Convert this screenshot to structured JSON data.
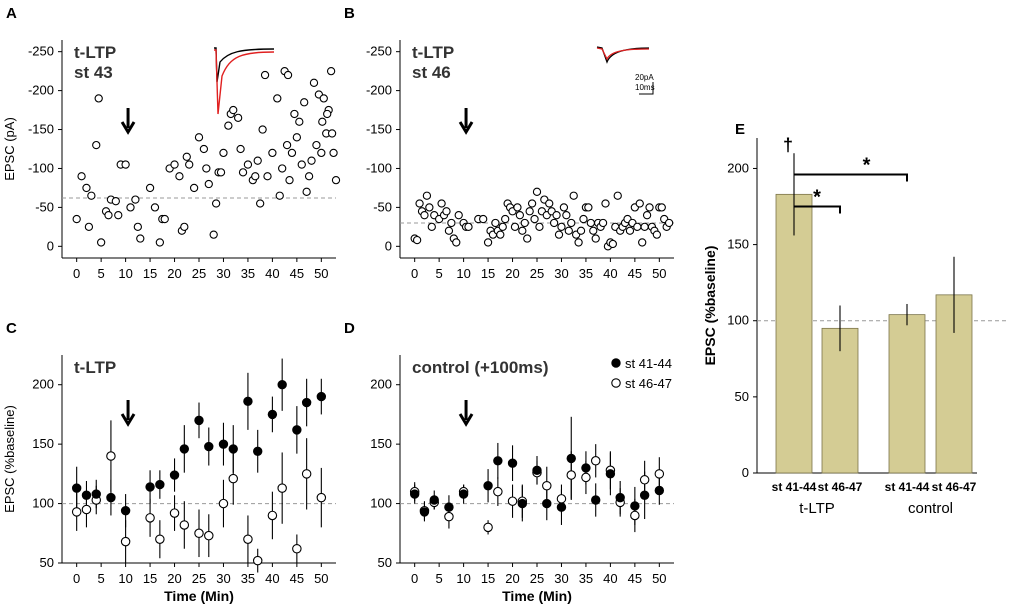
{
  "chart_data": [
    {
      "id": "A",
      "type": "scatter",
      "panel_label": "A",
      "title_lines": [
        "t-LTP",
        "st 43"
      ],
      "ylabel": "EPSC (pA)",
      "xlabel": "",
      "xlim": [
        -3,
        53
      ],
      "ylim": [
        15,
        -265
      ],
      "xticks": [
        0,
        5,
        10,
        15,
        20,
        25,
        30,
        35,
        40,
        45,
        50
      ],
      "yticks": [
        0,
        -50,
        -100,
        -150,
        -200,
        -250
      ],
      "baseline": -62,
      "arrow_x": 10.5,
      "points": [
        [
          0,
          -35
        ],
        [
          1,
          -90
        ],
        [
          2,
          -75
        ],
        [
          2.5,
          -25
        ],
        [
          3,
          -65
        ],
        [
          4,
          -130
        ],
        [
          4.5,
          -190
        ],
        [
          5,
          -5
        ],
        [
          6,
          -45
        ],
        [
          6.5,
          -40
        ],
        [
          7,
          -60
        ],
        [
          8,
          -58
        ],
        [
          8.5,
          -40
        ],
        [
          9,
          -105
        ],
        [
          10,
          -105
        ],
        [
          11,
          -50
        ],
        [
          12,
          -60
        ],
        [
          12.5,
          -25
        ],
        [
          13,
          -10
        ],
        [
          15,
          -75
        ],
        [
          16,
          -50
        ],
        [
          17,
          -5
        ],
        [
          17.5,
          -35
        ],
        [
          18,
          -35
        ],
        [
          19,
          -100
        ],
        [
          20,
          -105
        ],
        [
          21,
          -90
        ],
        [
          21.5,
          -20
        ],
        [
          22,
          -25
        ],
        [
          22.5,
          -115
        ],
        [
          23,
          -105
        ],
        [
          24,
          -75
        ],
        [
          25,
          -140
        ],
        [
          26,
          -125
        ],
        [
          27,
          -80
        ],
        [
          28,
          -15
        ],
        [
          29,
          -95
        ],
        [
          30,
          -120
        ],
        [
          31,
          -155
        ],
        [
          31.5,
          -170
        ],
        [
          32,
          -175
        ],
        [
          33,
          -165
        ],
        [
          33.5,
          -125
        ],
        [
          34,
          -95
        ],
        [
          35,
          -105
        ],
        [
          36,
          -85
        ],
        [
          36.5,
          -90
        ],
        [
          37,
          -110
        ],
        [
          38,
          -150
        ],
        [
          38.5,
          -220
        ],
        [
          39,
          -90
        ],
        [
          40,
          -120
        ],
        [
          41,
          -190
        ],
        [
          41.5,
          -65
        ],
        [
          42,
          -100
        ],
        [
          43,
          -130
        ],
        [
          43.5,
          -85
        ],
        [
          44,
          -120
        ],
        [
          44.5,
          -170
        ],
        [
          45,
          -140
        ],
        [
          45.5,
          -160
        ],
        [
          46,
          -105
        ],
        [
          47,
          -70
        ],
        [
          47.5,
          -90
        ],
        [
          48,
          -110
        ],
        [
          49,
          -130
        ],
        [
          50,
          -120
        ],
        [
          51,
          -145
        ],
        [
          51.5,
          -175
        ],
        [
          52,
          -225
        ],
        [
          52.5,
          -120
        ],
        [
          53,
          -85
        ],
        [
          42.5,
          -225
        ],
        [
          43.2,
          -220
        ],
        [
          26.5,
          -100
        ],
        [
          37.5,
          -55
        ],
        [
          29.5,
          -95
        ],
        [
          46.5,
          -185
        ],
        [
          48.5,
          -210
        ],
        [
          49.5,
          -195
        ],
        [
          50.5,
          -190
        ],
        [
          51.2,
          -170
        ],
        [
          50.2,
          -160
        ],
        [
          52.2,
          -145
        ],
        [
          28.5,
          -55
        ]
      ],
      "inset": "trace-red-black-A"
    },
    {
      "id": "B",
      "type": "scatter",
      "panel_label": "B",
      "title_lines": [
        "t-LTP",
        "st 46"
      ],
      "ylabel": "",
      "xlabel": "",
      "xlim": [
        -3,
        53
      ],
      "ylim": [
        15,
        -265
      ],
      "xticks": [
        0,
        5,
        10,
        15,
        20,
        25,
        30,
        35,
        40,
        45,
        50
      ],
      "yticks": [
        0,
        -50,
        -100,
        -150,
        -200,
        -250
      ],
      "baseline": -30,
      "arrow_x": 10.5,
      "scalebar": [
        "20pA",
        "10ms"
      ],
      "points": [
        [
          0,
          -10
        ],
        [
          0.5,
          -8
        ],
        [
          1,
          -55
        ],
        [
          1.5,
          -45
        ],
        [
          2,
          -40
        ],
        [
          2.5,
          -65
        ],
        [
          3,
          -50
        ],
        [
          3.5,
          -25
        ],
        [
          4,
          -40
        ],
        [
          5,
          -35
        ],
        [
          5.5,
          -55
        ],
        [
          6,
          -40
        ],
        [
          6.5,
          -45
        ],
        [
          7,
          -20
        ],
        [
          7.5,
          -30
        ],
        [
          8,
          -10
        ],
        [
          8.5,
          -5
        ],
        [
          9,
          -40
        ],
        [
          10,
          -30
        ],
        [
          10.5,
          -25
        ],
        [
          11,
          -25
        ],
        [
          13,
          -35
        ],
        [
          14,
          -35
        ],
        [
          15,
          -5
        ],
        [
          15.5,
          -20
        ],
        [
          16,
          -15
        ],
        [
          16.5,
          -30
        ],
        [
          17,
          -20
        ],
        [
          17.5,
          -15
        ],
        [
          18,
          -25
        ],
        [
          18.5,
          -35
        ],
        [
          19,
          -55
        ],
        [
          19.5,
          -50
        ],
        [
          20,
          -45
        ],
        [
          20.5,
          -25
        ],
        [
          21,
          -50
        ],
        [
          21.5,
          -40
        ],
        [
          22,
          -20
        ],
        [
          22.5,
          -30
        ],
        [
          23,
          -10
        ],
        [
          23.5,
          -45
        ],
        [
          24,
          -55
        ],
        [
          24.5,
          -35
        ],
        [
          25,
          -70
        ],
        [
          25.5,
          -25
        ],
        [
          26,
          -45
        ],
        [
          26.5,
          -60
        ],
        [
          27,
          -40
        ],
        [
          27.5,
          -55
        ],
        [
          28,
          -45
        ],
        [
          28.5,
          -30
        ],
        [
          29,
          -40
        ],
        [
          29.5,
          -15
        ],
        [
          30,
          -25
        ],
        [
          30.5,
          -50
        ],
        [
          31,
          -40
        ],
        [
          31.5,
          -20
        ],
        [
          32,
          -30
        ],
        [
          32.5,
          -65
        ],
        [
          33,
          -15
        ],
        [
          33.5,
          -5
        ],
        [
          34,
          -20
        ],
        [
          34.5,
          -35
        ],
        [
          35,
          -50
        ],
        [
          35.5,
          -50
        ],
        [
          36,
          -30
        ],
        [
          36.5,
          -20
        ],
        [
          37,
          -10
        ],
        [
          37.5,
          -30
        ],
        [
          38,
          -25
        ],
        [
          38.5,
          -30
        ],
        [
          39,
          -55
        ],
        [
          39.5,
          0
        ],
        [
          40,
          -5
        ],
        [
          40.5,
          -3
        ],
        [
          41,
          -25
        ],
        [
          41.5,
          -65
        ],
        [
          42,
          -20
        ],
        [
          42.5,
          -25
        ],
        [
          43,
          -30
        ],
        [
          43.5,
          -35
        ],
        [
          44,
          -20
        ],
        [
          44.5,
          -30
        ],
        [
          45,
          -50
        ],
        [
          45.5,
          -25
        ],
        [
          46,
          -55
        ],
        [
          46.5,
          -5
        ],
        [
          47,
          -25
        ],
        [
          47.5,
          -40
        ],
        [
          48,
          -50
        ],
        [
          48.5,
          -25
        ],
        [
          49,
          -20
        ],
        [
          49.5,
          -15
        ],
        [
          50,
          -50
        ],
        [
          50.5,
          -50
        ],
        [
          51,
          -35
        ],
        [
          51.5,
          -25
        ],
        [
          52,
          -30
        ]
      ]
    },
    {
      "id": "C",
      "type": "scatter_errorbar",
      "panel_label": "C",
      "title_lines": [
        "t-LTP"
      ],
      "ylabel": "EPSC (%baseline)",
      "xlabel": "Time (Min)",
      "xlim": [
        -3,
        53
      ],
      "ylim": [
        50,
        225
      ],
      "xticks": [
        0,
        5,
        10,
        15,
        20,
        25,
        30,
        35,
        40,
        45,
        50
      ],
      "yticks": [
        50,
        100,
        150,
        200
      ],
      "baseline": 100,
      "arrow_x": 10.5,
      "series": [
        {
          "name": "st 41-44",
          "style": "filled",
          "x": [
            0,
            2,
            4,
            7,
            10,
            15,
            17,
            20,
            22,
            25,
            27,
            30,
            32,
            35,
            37,
            40,
            42,
            45,
            47,
            50
          ],
          "y": [
            113,
            107,
            108,
            105,
            94,
            114,
            116,
            124,
            146,
            170,
            148,
            150,
            146,
            186,
            144,
            175,
            200,
            162,
            185,
            190
          ],
          "err": [
            18,
            12,
            12,
            15,
            14,
            14,
            12,
            14,
            20,
            15,
            16,
            18,
            20,
            24,
            18,
            15,
            22,
            20,
            20,
            15
          ]
        },
        {
          "name": "st 46-47",
          "style": "open",
          "x": [
            0,
            2,
            4,
            7,
            10,
            15,
            17,
            20,
            22,
            25,
            27,
            30,
            32,
            35,
            37,
            40,
            42,
            45,
            47,
            50
          ],
          "y": [
            93,
            95,
            103,
            140,
            68,
            88,
            70,
            92,
            82,
            75,
            73,
            100,
            121,
            70,
            52,
            90,
            113,
            62,
            125,
            105
          ],
          "err": [
            16,
            15,
            12,
            30,
            18,
            16,
            16,
            15,
            20,
            20,
            18,
            20,
            22,
            20,
            10,
            20,
            30,
            12,
            30,
            25
          ]
        }
      ]
    },
    {
      "id": "D",
      "type": "scatter_errorbar",
      "panel_label": "D",
      "title_lines": [
        "control (+100ms)"
      ],
      "ylabel": "",
      "xlabel": "Time (Min)",
      "xlim": [
        -3,
        53
      ],
      "ylim": [
        50,
        225
      ],
      "xticks": [
        0,
        5,
        10,
        15,
        20,
        25,
        30,
        35,
        40,
        45,
        50
      ],
      "yticks": [
        50,
        100,
        150,
        200
      ],
      "baseline": 100,
      "arrow_x": 10.5,
      "legend": [
        "st 41-44",
        "st 46-47"
      ],
      "series": [
        {
          "name": "st 41-44",
          "style": "filled",
          "x": [
            0,
            2,
            4,
            7,
            10,
            15,
            17,
            20,
            22,
            25,
            27,
            30,
            32,
            35,
            37,
            40,
            42,
            45,
            47,
            50
          ],
          "y": [
            108,
            93,
            103,
            97,
            108,
            115,
            136,
            134,
            100,
            128,
            100,
            97,
            138,
            130,
            103,
            125,
            105,
            98,
            107,
            111
          ],
          "err": [
            8,
            8,
            8,
            10,
            8,
            14,
            15,
            15,
            15,
            12,
            14,
            15,
            35,
            14,
            14,
            18,
            14,
            16,
            20,
            12
          ]
        },
        {
          "name": "st 46-47",
          "style": "open",
          "x": [
            0,
            2,
            4,
            7,
            10,
            15,
            17,
            20,
            22,
            25,
            27,
            30,
            32,
            35,
            37,
            40,
            42,
            45,
            47,
            50
          ],
          "y": [
            110,
            94,
            101,
            89,
            110,
            80,
            110,
            102,
            102,
            126,
            115,
            104,
            124,
            122,
            136,
            128,
            101,
            90,
            120,
            125
          ],
          "err": [
            8,
            8,
            6,
            10,
            6,
            6,
            12,
            14,
            14,
            10,
            16,
            12,
            20,
            14,
            14,
            16,
            12,
            14,
            16,
            14
          ]
        }
      ]
    },
    {
      "id": "E",
      "type": "bar",
      "panel_label": "E",
      "ylabel": "EPSC (%baseline)",
      "ylim": [
        0,
        220
      ],
      "yticks": [
        0,
        50,
        100,
        150,
        200
      ],
      "baseline": 100,
      "categories": [
        "st 41-44",
        "st 46-47",
        "st 41-44",
        "st 46-47"
      ],
      "groups": [
        "t-LTP",
        "control"
      ],
      "values": [
        183,
        95,
        104,
        117
      ],
      "err": [
        27,
        15,
        7,
        25
      ],
      "dagger": "†",
      "sig": [
        "*",
        "*"
      ]
    }
  ]
}
